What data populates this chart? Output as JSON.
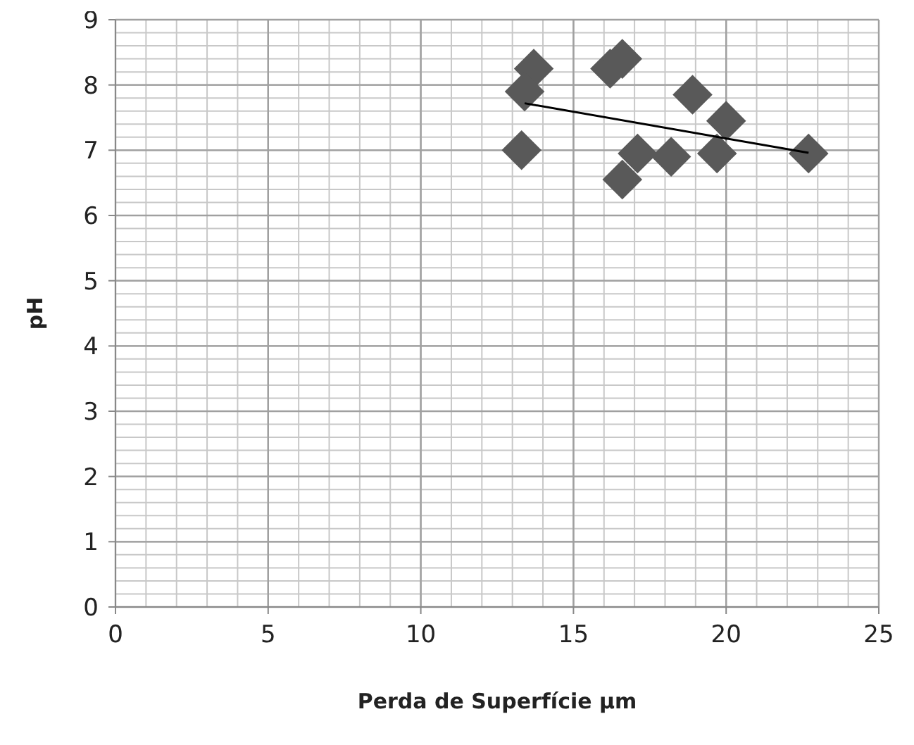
{
  "chart_data": {
    "type": "scatter",
    "xlabel": "Perda de Superfície µm",
    "ylabel": "pH",
    "xlim": [
      0,
      25
    ],
    "ylim": [
      0,
      9
    ],
    "xticks": [
      0,
      5,
      10,
      15,
      20,
      25
    ],
    "yticks": [
      0,
      1,
      2,
      3,
      4,
      5,
      6,
      7,
      8,
      9
    ],
    "grid": true,
    "series": [
      {
        "color": "#595959",
        "marker": "diamond",
        "x": [
          13.7,
          13.4,
          13.3,
          16.2,
          16.6,
          18.9,
          20.0,
          17.1,
          18.2,
          19.7,
          16.6,
          22.7
        ],
        "values": [
          8.25,
          7.9,
          7.0,
          8.25,
          8.4,
          7.85,
          7.45,
          6.95,
          6.9,
          6.95,
          6.55,
          6.95
        ]
      },
      {
        "type": "line",
        "color": "#000000",
        "marker": "none",
        "x": [
          13.4,
          22.7
        ],
        "values": [
          7.72,
          6.96
        ]
      }
    ]
  }
}
